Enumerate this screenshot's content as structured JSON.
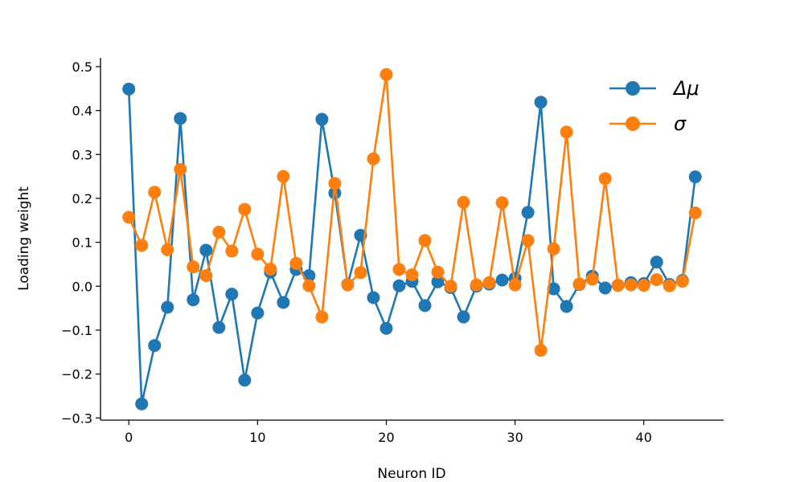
{
  "chart_data": {
    "type": "line",
    "title": "",
    "xlabel": "Neuron ID",
    "ylabel": "Loading weight",
    "xlim": [
      -2.2,
      46.2
    ],
    "ylim": [
      -0.305,
      0.52
    ],
    "xticks": [
      0,
      10,
      20,
      30,
      40
    ],
    "yticks": [
      -0.3,
      -0.2,
      -0.1,
      0.0,
      0.1,
      0.2,
      0.3,
      0.4,
      0.5
    ],
    "ytick_labels": [
      "−0.3",
      "−0.2",
      "−0.1",
      "0.0",
      "0.1",
      "0.2",
      "0.3",
      "0.4",
      "0.5"
    ],
    "xtick_labels": [
      "0",
      "10",
      "20",
      "30",
      "40"
    ],
    "legend_position": "top-right",
    "grid": false,
    "x": [
      0,
      1,
      2,
      3,
      4,
      5,
      6,
      7,
      8,
      9,
      10,
      11,
      12,
      13,
      14,
      15,
      16,
      17,
      18,
      19,
      20,
      21,
      22,
      23,
      24,
      25,
      26,
      27,
      28,
      29,
      30,
      31,
      32,
      33,
      34,
      35,
      36,
      37,
      38,
      39,
      40,
      41,
      42,
      43,
      44
    ],
    "series": [
      {
        "name": "Δμ",
        "color": "#1f77b4",
        "values": [
          0.449,
          -0.268,
          -0.135,
          -0.048,
          0.382,
          -0.031,
          0.082,
          -0.094,
          -0.018,
          -0.214,
          -0.061,
          0.032,
          -0.037,
          0.038,
          0.024,
          0.38,
          0.212,
          0.004,
          0.116,
          -0.026,
          -0.096,
          0.001,
          0.011,
          -0.044,
          0.01,
          -0.003,
          -0.07,
          0.0,
          0.005,
          0.014,
          0.018,
          0.168,
          0.419,
          -0.006,
          -0.046,
          0.004,
          0.023,
          -0.004,
          0.002,
          0.008,
          0.006,
          0.055,
          0.004,
          0.013,
          0.249
        ]
      },
      {
        "name": "σ",
        "color": "#ff7f0e",
        "values": [
          0.157,
          0.093,
          0.214,
          0.083,
          0.266,
          0.044,
          0.024,
          0.123,
          0.08,
          0.175,
          0.073,
          0.039,
          0.25,
          0.052,
          0.001,
          -0.07,
          0.234,
          0.003,
          0.031,
          0.29,
          0.482,
          0.038,
          0.026,
          0.104,
          0.032,
          0.0,
          0.191,
          0.003,
          0.008,
          0.19,
          0.003,
          0.104,
          -0.146,
          0.085,
          0.351,
          0.005,
          0.016,
          0.245,
          0.002,
          0.003,
          0.002,
          0.015,
          0.001,
          0.011,
          0.167
        ]
      }
    ]
  }
}
